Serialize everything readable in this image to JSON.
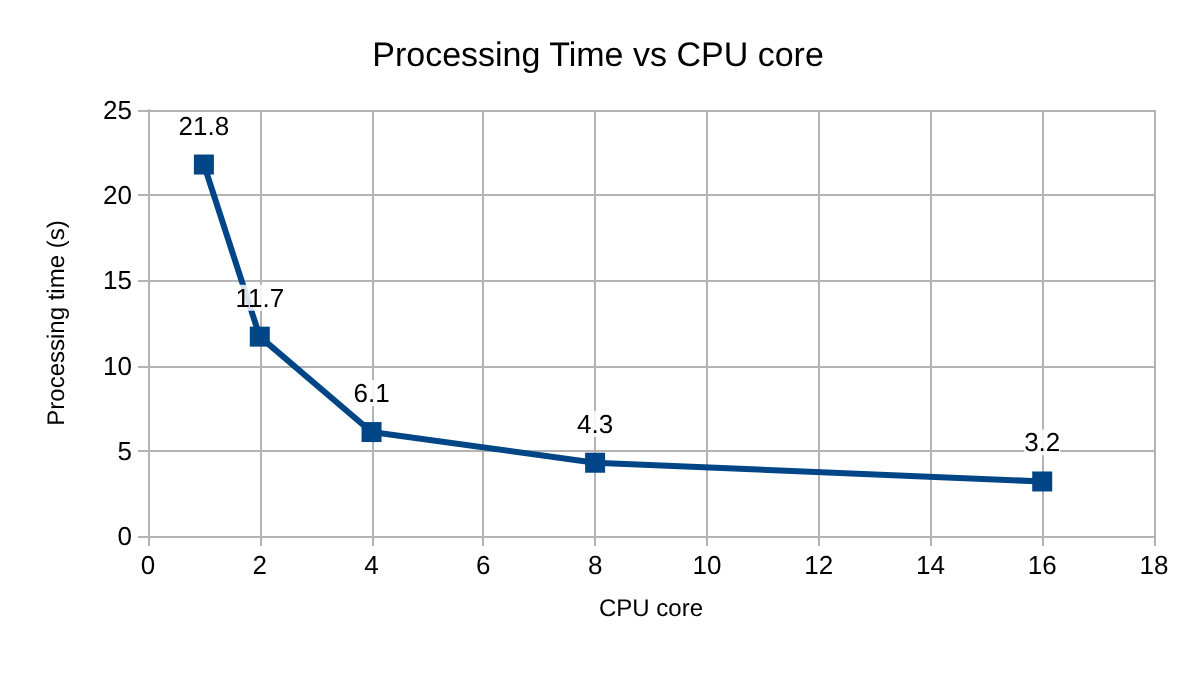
{
  "chart_data": {
    "type": "line",
    "title": "Processing Time vs CPU core",
    "xlabel": "CPU core",
    "ylabel": "Processing time (s)",
    "x": [
      1,
      2,
      4,
      8,
      16
    ],
    "series": [
      {
        "color": "#004586",
        "values": [
          21.8,
          11.7,
          6.1,
          4.3,
          3.2
        ]
      }
    ],
    "xlim": [
      0,
      18
    ],
    "xticks": [
      0,
      2,
      4,
      6,
      8,
      10,
      12,
      14,
      16,
      18
    ],
    "ylim": [
      0,
      25
    ],
    "yticks": [
      0,
      5,
      10,
      15,
      20,
      25
    ],
    "grid": true,
    "marker": "square",
    "line_style": "solid",
    "data_labels": true
  }
}
